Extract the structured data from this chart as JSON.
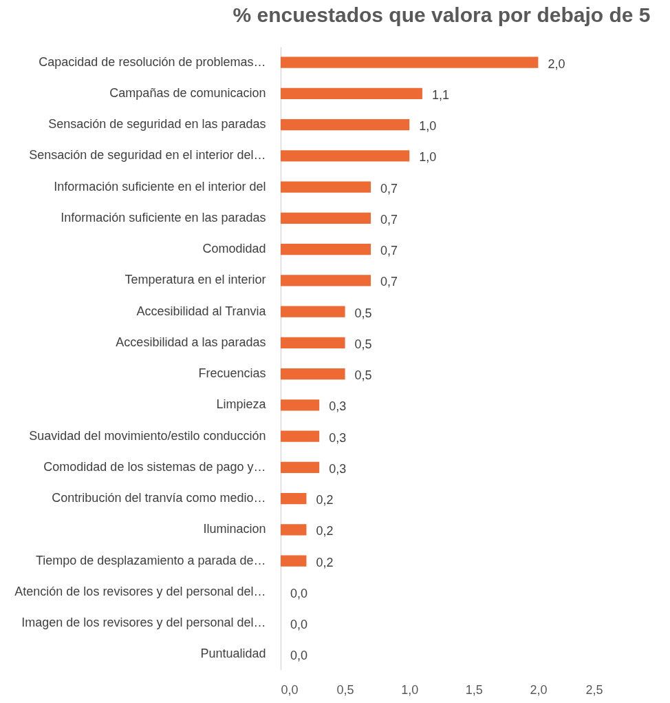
{
  "chart_data": {
    "type": "bar",
    "orientation": "horizontal",
    "title": "% encuestados que valora por debajo de 5",
    "categories": [
      "Capacidad de resolución de problemas…",
      "Campañas de comunicacion",
      "Sensación de seguridad en las paradas",
      "Sensación de seguridad en el interior del…",
      "Información suficiente en el interior del",
      "Información suficiente en las paradas",
      "Comodidad",
      "Temperatura en el interior",
      "Accesibilidad al Tranvia",
      "Accesibilidad a las paradas",
      "Frecuencias",
      "Limpieza",
      "Suavidad del movimiento/estilo conducción",
      "Comodidad de los sistemas de pago y…",
      "Contribución del tranvía como medio…",
      "Iluminacion",
      "Tiempo de desplazamiento a parada de…",
      "Atención de los revisores y del personal del…",
      "Imagen de los revisores y del personal del…",
      "Puntualidad"
    ],
    "values": [
      2.0,
      1.1,
      1.0,
      1.0,
      0.7,
      0.7,
      0.7,
      0.7,
      0.5,
      0.5,
      0.5,
      0.3,
      0.3,
      0.3,
      0.2,
      0.2,
      0.2,
      0.0,
      0.0,
      0.0
    ],
    "value_labels": [
      "2,0",
      "1,1",
      "1,0",
      "1,0",
      "0,7",
      "0,7",
      "0,7",
      "0,7",
      "0,5",
      "0,5",
      "0,5",
      "0,3",
      "0,3",
      "0,3",
      "0,2",
      "0,2",
      "0,2",
      "0,0",
      "0,0",
      "0,0"
    ],
    "color": "#ed6a35",
    "xlim": [
      0,
      2.5
    ],
    "xticks": [
      {
        "value": 0,
        "label": "0,0"
      },
      {
        "value": 0.5,
        "label": "0,5"
      },
      {
        "value": 1,
        "label": "1,0"
      },
      {
        "value": 1.5,
        "label": "1,5"
      },
      {
        "value": 2,
        "label": "2,0"
      },
      {
        "value": 2.5,
        "label": "2,5"
      }
    ],
    "grid": false
  }
}
